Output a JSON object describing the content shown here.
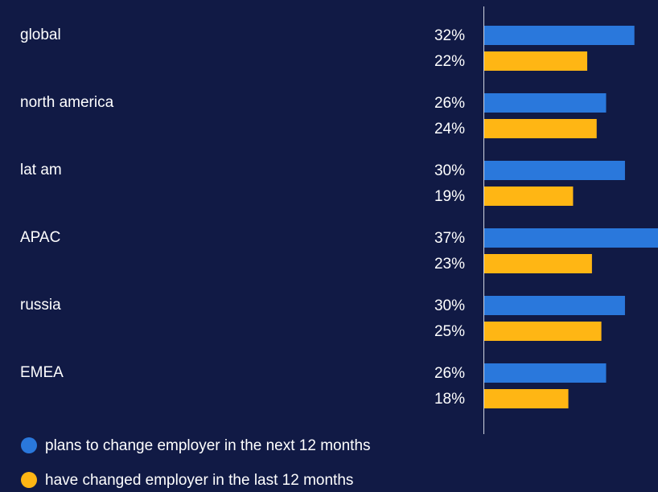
{
  "chart_data": {
    "type": "hbar",
    "categories": [
      "global",
      "north america",
      "lat am",
      "APAC",
      "russia",
      "EMEA"
    ],
    "series": [
      {
        "name": "plans to change employer in the next 12 months",
        "color": "#2a78dc",
        "values": [
          32,
          26,
          30,
          37,
          30,
          26
        ],
        "value_labels": [
          "32%",
          "26%",
          "30%",
          "37%",
          "30%",
          "26%"
        ]
      },
      {
        "name": "have changed employer in the last 12 months",
        "color": "#ffb614",
        "values": [
          22,
          24,
          19,
          23,
          25,
          18
        ],
        "value_labels": [
          "22%",
          "24%",
          "19%",
          "23%",
          "25%",
          "18%"
        ]
      }
    ],
    "xlim": [
      0,
      37
    ]
  }
}
